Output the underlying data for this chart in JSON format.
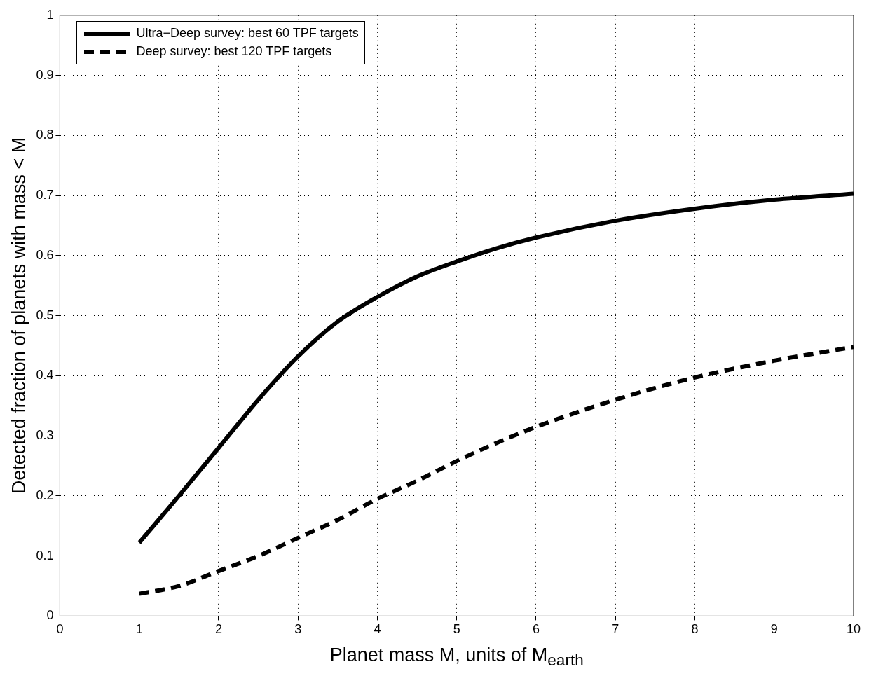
{
  "chart_data": {
    "type": "line",
    "xlabel": "Planet mass M, units of M$_{earth}$",
    "ylabel": "Detected fraction of planets with mass < M",
    "x": [
      1,
      1.5,
      2,
      2.5,
      3,
      3.5,
      4,
      4.5,
      5,
      5.5,
      6,
      7,
      8,
      9,
      10
    ],
    "series": [
      {
        "name": "Ultra−Deep survey: best 60 TPF targets",
        "color": "#000000",
        "line_style": "solid",
        "values": [
          0.122,
          0.2,
          0.28,
          0.36,
          0.432,
          0.49,
          0.531,
          0.565,
          0.59,
          0.612,
          0.63,
          0.658,
          0.678,
          0.693,
          0.703
        ]
      },
      {
        "name": "Deep survey: best 120 TPF targets",
        "color": "#000000",
        "line_style": "dashed",
        "values": [
          0.037,
          0.05,
          0.075,
          0.1,
          0.13,
          0.16,
          0.195,
          0.225,
          0.258,
          0.288,
          0.315,
          0.36,
          0.397,
          0.425,
          0.448
        ]
      }
    ],
    "xlim": [
      0,
      10
    ],
    "xticks": [
      0,
      1,
      2,
      3,
      4,
      5,
      6,
      7,
      8,
      9,
      10
    ],
    "ylim": [
      0,
      1
    ],
    "yticks": [
      0,
      0.1,
      0.2,
      0.3,
      0.4,
      0.5,
      0.6,
      0.7,
      0.8,
      0.9,
      1
    ],
    "grid": true,
    "legend": "top left",
    "marker": "none"
  }
}
